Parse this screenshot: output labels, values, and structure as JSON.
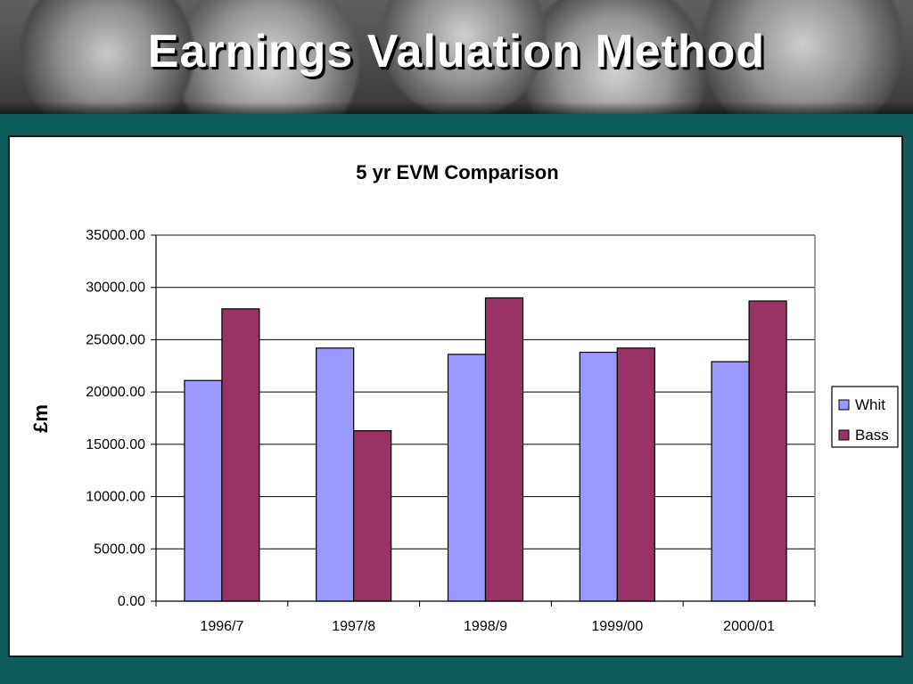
{
  "slide": {
    "title": "Earnings Valuation Method"
  },
  "chart_data": {
    "type": "bar",
    "title": "5 yr EVM Comparison",
    "xlabel": "",
    "ylabel": "£m",
    "categories": [
      "1996/7",
      "1997/8",
      "1998/9",
      "1999/00",
      "2000/01"
    ],
    "series": [
      {
        "name": "Whit",
        "values": [
          21100,
          24200,
          23600,
          23800,
          22900
        ],
        "color": "#9999ff"
      },
      {
        "name": "Bass",
        "values": [
          27950,
          16300,
          29000,
          24200,
          28700
        ],
        "color": "#993366"
      }
    ],
    "ylim": [
      0,
      35000
    ],
    "yticks": [
      "0.00",
      "5000.00",
      "10000.00",
      "15000.00",
      "20000.00",
      "25000.00",
      "30000.00",
      "35000.00"
    ],
    "grid": true,
    "legend_position": "right"
  }
}
